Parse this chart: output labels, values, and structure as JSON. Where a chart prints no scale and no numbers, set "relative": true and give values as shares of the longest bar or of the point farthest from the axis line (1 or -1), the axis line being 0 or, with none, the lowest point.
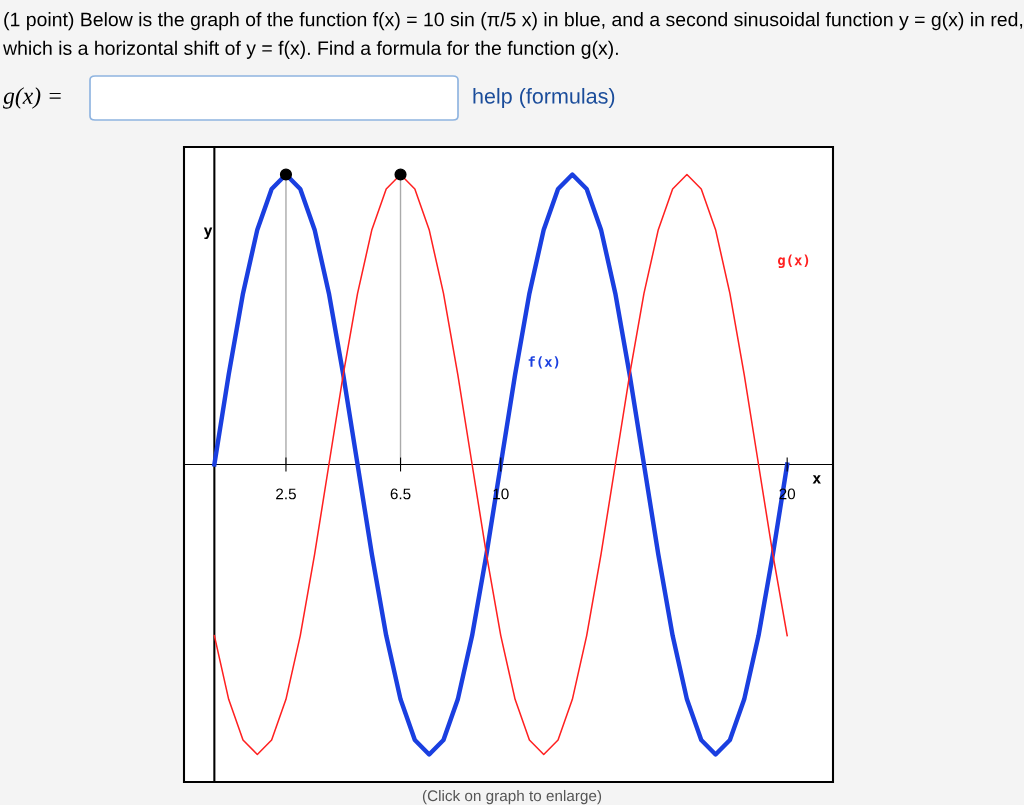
{
  "chart_data": {
    "type": "line",
    "title": "(1 point) Below is the graph of the function f(x) = 10 sin (π/5 x) in blue, and a second sinusoidal function y = g(x) in red, which is a horizontal shift of y = f(x). Find a formula for the function g(x).",
    "xlabel": "x",
    "ylabel": "y",
    "relative": true,
    "xlim": [
      -1.06,
      21.6
    ],
    "xticks": [
      {
        "value": 2.5,
        "label": "2.5"
      },
      {
        "value": 6.5,
        "label": "6.5"
      },
      10,
      20
    ],
    "x": [
      0,
      0.5,
      1,
      1.5,
      2,
      2.5,
      3,
      3.5,
      4,
      4.5,
      5,
      5.5,
      6,
      6.5,
      7,
      7.5,
      8,
      8.5,
      9,
      9.5,
      10,
      10.5,
      11,
      11.5,
      12,
      12.5,
      13,
      13.5,
      14,
      14.5,
      15,
      15.5,
      16,
      16.5,
      17,
      17.5,
      18,
      18.5,
      19,
      19.5,
      20
    ],
    "series": [
      {
        "name": "f(x)",
        "color": "#1a3fe0",
        "values": [
          0,
          0.31,
          0.59,
          0.81,
          0.95,
          1,
          0.95,
          0.81,
          0.59,
          0.31,
          0,
          -0.31,
          -0.59,
          -0.81,
          -0.95,
          -1,
          -0.95,
          -0.81,
          -0.59,
          -0.31,
          0,
          0.31,
          0.59,
          0.81,
          0.95,
          1,
          0.95,
          0.81,
          0.59,
          0.31,
          0,
          -0.31,
          -0.59,
          -0.81,
          -0.95,
          -1,
          -0.95,
          -0.81,
          -0.59,
          -0.31,
          0
        ]
      },
      {
        "name": "g(x)",
        "color": "#ff2020",
        "values": [
          -0.59,
          -0.81,
          -0.95,
          -1,
          -0.95,
          -0.81,
          -0.59,
          -0.31,
          0,
          0.31,
          0.59,
          0.81,
          0.95,
          1,
          0.95,
          0.81,
          0.59,
          0.31,
          0,
          -0.31,
          -0.59,
          -0.81,
          -0.95,
          -1,
          -0.95,
          -0.81,
          -0.59,
          -0.31,
          0,
          0.31,
          0.59,
          0.81,
          0.95,
          1,
          0.95,
          0.81,
          0.59,
          0.31,
          0,
          -0.31,
          -0.59
        ]
      },
      {
        "type": "lollipop",
        "color": "#000000",
        "x": [
          2.5,
          6.5
        ],
        "values": [
          1,
          1
        ]
      }
    ],
    "annotations": [
      "g(x) =",
      "help (formulas)",
      "(Click on graph to enlarge)"
    ]
  }
}
